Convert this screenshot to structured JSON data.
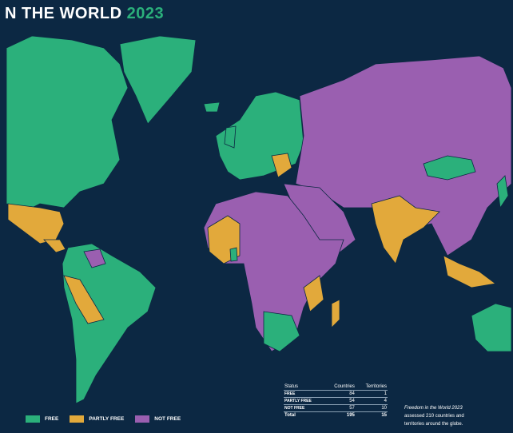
{
  "header": {
    "title": "N THE WORLD",
    "year": "2023"
  },
  "legend": [
    {
      "key": "free",
      "label": "FREE",
      "color": "#2bb07b"
    },
    {
      "key": "partly",
      "label": "PARTLY FREE",
      "color": "#e2a93b"
    },
    {
      "key": "notfree",
      "label": "NOT FREE",
      "color": "#9a5fb0"
    }
  ],
  "table": {
    "columns": [
      "Status",
      "Countries",
      "Territories"
    ],
    "rows": [
      [
        "FREE",
        "84",
        "1"
      ],
      [
        "PARTLY FREE",
        "54",
        "4"
      ],
      [
        "NOT FREE",
        "57",
        "10"
      ]
    ],
    "total": [
      "Total",
      "195",
      "15"
    ]
  },
  "caption": {
    "title": "Freedom in the World 2023",
    "lines": [
      "assessed 210 countries and",
      "territories around the globe."
    ]
  }
}
